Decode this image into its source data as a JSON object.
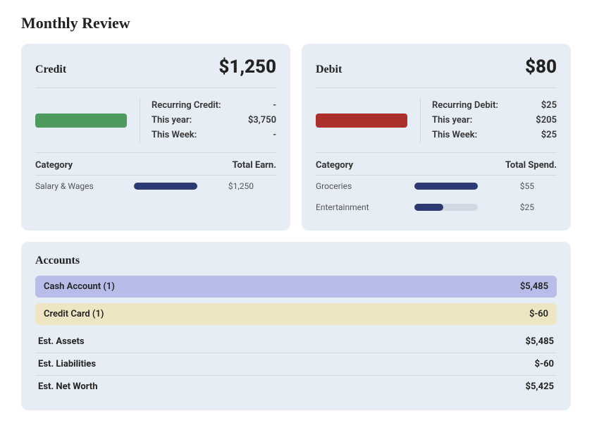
{
  "title": "Monthly Review",
  "colors": {
    "panel_bg": "#e7edf5",
    "credit_bar": "#4f9a5e",
    "debit_bar": "#ab2f2b",
    "category_bar_fill": "#2c3a72",
    "category_bar_track": "#d3d9e3",
    "cash_row_bg": "#b7bde8",
    "creditcard_row_bg": "#eee5c2",
    "divider": "#cfd8e3"
  },
  "credit": {
    "title": "Credit",
    "amount": "$1,250",
    "stats": {
      "recurring_label": "Recurring Credit:",
      "recurring_value": "-",
      "year_label": "This year:",
      "year_value": "$3,750",
      "week_label": "This Week:",
      "week_value": "-"
    },
    "cat_header_left": "Category",
    "cat_header_right": "Total Earn.",
    "categories": [
      {
        "name": "Salary & Wages",
        "value": "$1,250",
        "fill_pct": 100
      }
    ]
  },
  "debit": {
    "title": "Debit",
    "amount": "$80",
    "stats": {
      "recurring_label": "Recurring Debit:",
      "recurring_value": "$25",
      "year_label": "This year:",
      "year_value": "$205",
      "week_label": "This Week:",
      "week_value": "$25"
    },
    "cat_header_left": "Category",
    "cat_header_right": "Total Spend.",
    "categories": [
      {
        "name": "Groceries",
        "value": "$55",
        "fill_pct": 100
      },
      {
        "name": "Entertainment",
        "value": "$25",
        "fill_pct": 45
      }
    ]
  },
  "accounts": {
    "title": "Accounts",
    "rows": [
      {
        "label": "Cash Account  (1)",
        "value": "$5,485",
        "style": "cash"
      },
      {
        "label": "Credit Card  (1)",
        "value": "$-60",
        "style": "credit"
      }
    ],
    "estimates": [
      {
        "label": "Est. Assets",
        "value": "$5,485"
      },
      {
        "label": "Est. Liabilities",
        "value": "$-60"
      },
      {
        "label": "Est. Net Worth",
        "value": "$5,425"
      }
    ]
  }
}
